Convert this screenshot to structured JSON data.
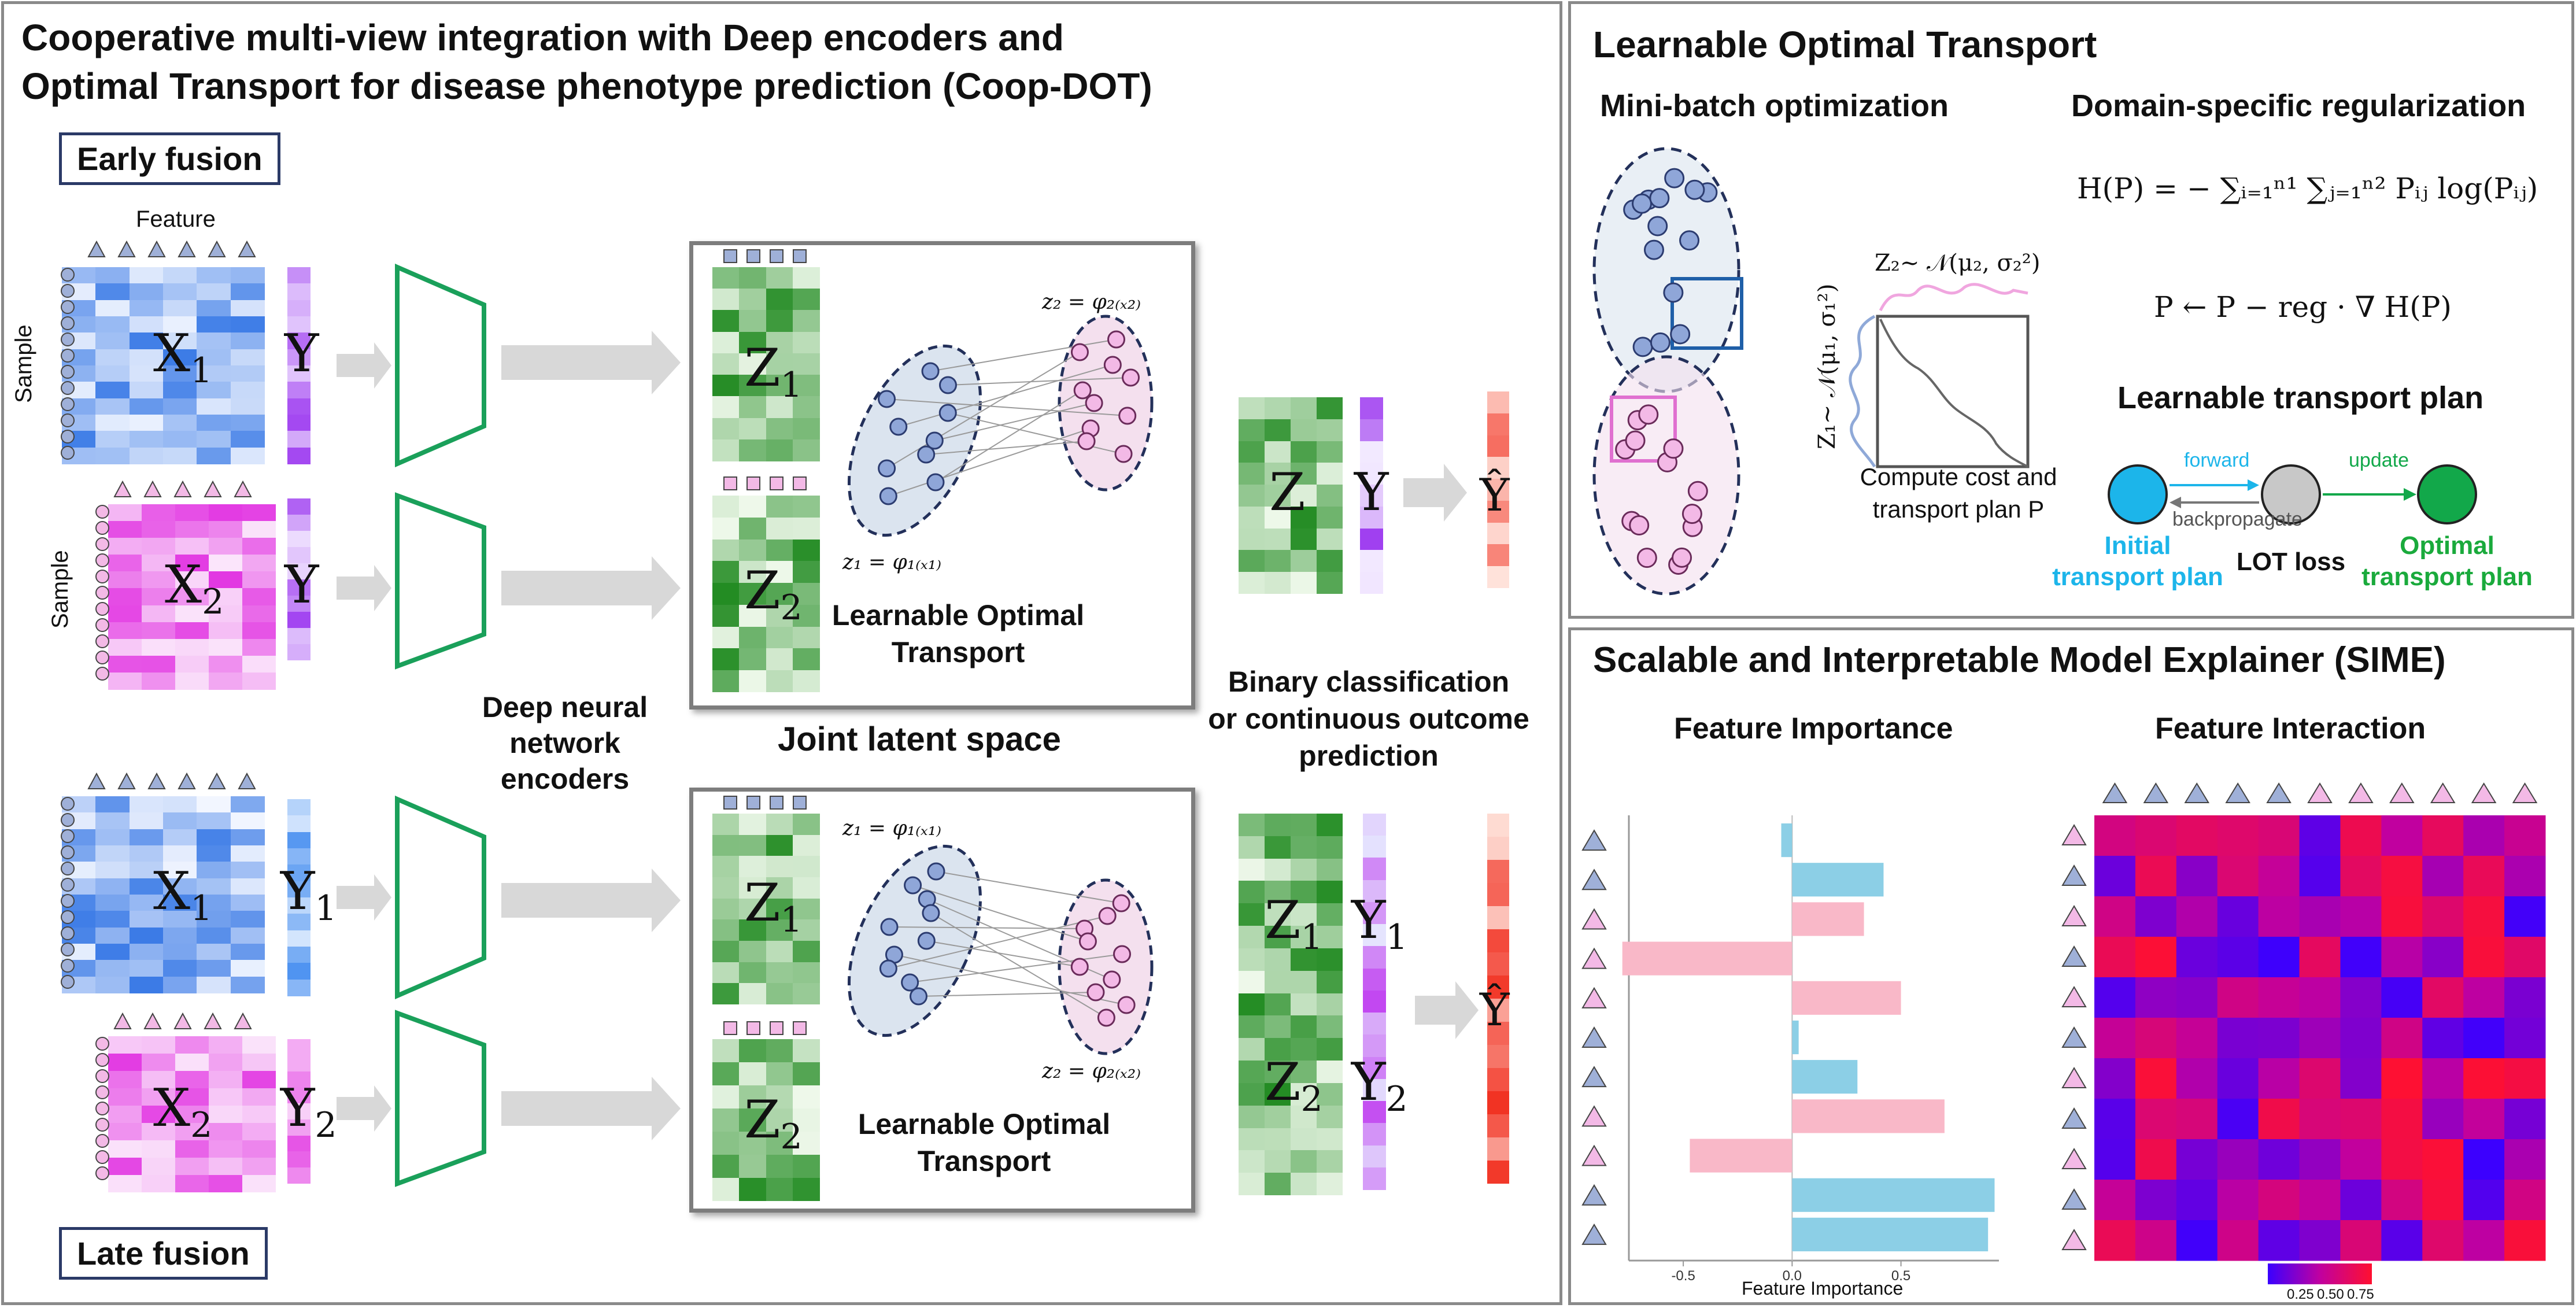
{
  "main_panel": {
    "title_line1": "Cooperative multi-view integration with Deep encoders and",
    "title_line2": "Optimal Transport for disease phenotype prediction (Coop-DOT)",
    "early_fusion": "Early fusion",
    "late_fusion": "Late fusion",
    "feature_label": "Feature",
    "sample_label": "Sample",
    "encoders_label_1": "Deep neural",
    "encoders_label_2": "network",
    "encoders_label_3": "encoders",
    "joint_latent": "Joint latent space",
    "lot_label_1": "Learnable Optimal",
    "lot_label_2": "Transport",
    "outcome_1": "Binary classification",
    "outcome_2": "or continuous outcome",
    "outcome_3": "prediction",
    "eq_z2": "z₂ = φ₂₍ₓ₂₎",
    "eq_z1": "z₁ = φ₁₍ₓ₁₎",
    "vars": {
      "X1": "X",
      "X2": "X",
      "Y": "Y",
      "Y1": "Y",
      "Y2": "Y",
      "Z1": "Z",
      "Z2": "Z",
      "Z": "Z",
      "Yhat": "Ŷ",
      "sub1": "1",
      "sub2": "2"
    }
  },
  "lot_panel": {
    "title": "Learnable Optimal Transport",
    "minibatch": "Mini-batch optimization",
    "regularization": "Domain-specific regularization",
    "dist_z2": "Z₂~ 𝒩(μ₂, σ₂²)",
    "dist_z1": "Z₁~ 𝒩(μ₁, σ₁²)",
    "entropy_eq": "H(P) = − ∑ᵢ₌₁ⁿ¹ ∑ⱼ₌₁ⁿ² Pᵢⱼ log(Pᵢⱼ)",
    "update_eq": "P ← P − reg · ∇ H(P)",
    "compute_1": "Compute cost and",
    "compute_2": "transport plan P",
    "transport_title": "Learnable transport plan",
    "forward": "forward",
    "backpropagate": "backpropagate",
    "update": "update",
    "initial_1": "Initial",
    "initial_2": "transport plan",
    "lot_loss": "LOT loss",
    "optimal_1": "Optimal",
    "optimal_2": "transport plan",
    "colors": {
      "initial": "#1cb5ea",
      "loss": "#c8c8c8",
      "optimal": "#12a84a"
    }
  },
  "sime_panel": {
    "title": "Scalable and Interpretable Model Explainer (SIME)",
    "importance_title": "Feature Importance",
    "interaction_title": "Feature Interaction",
    "importance_xlabel": "Feature Importance",
    "colorbar_ticks": [
      "0.25",
      "0.50",
      "0.75"
    ]
  },
  "chart_data": {
    "type": "bar",
    "orientation": "horizontal",
    "xlabel": "Feature Importance",
    "xticks": [
      "-0.5",
      "0.0",
      "0.5"
    ],
    "xlim": [
      -0.75,
      0.95
    ],
    "values": [
      -0.05,
      0.42,
      0.33,
      -0.78,
      0.5,
      0.03,
      0.3,
      0.7,
      -0.47,
      0.93,
      0.9
    ],
    "colors": [
      "#8ccfe6",
      "#8ccfe6",
      "#f9b8c8",
      "#f9b8c8",
      "#f9b8c8",
      "#8ccfe6",
      "#8ccfe6",
      "#f9b8c8",
      "#f9b8c8",
      "#8ccfe6",
      "#8ccfe6"
    ]
  }
}
